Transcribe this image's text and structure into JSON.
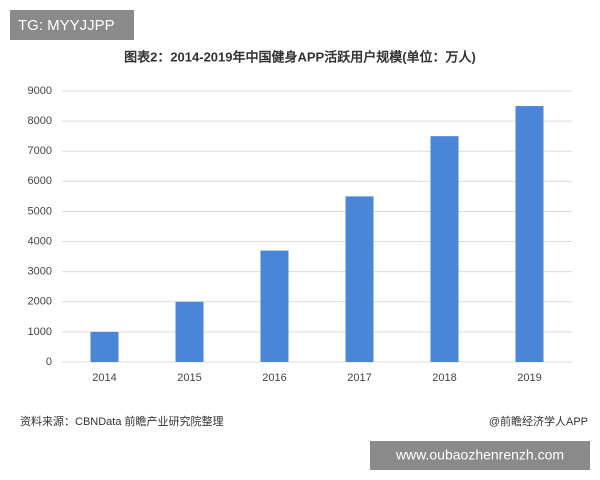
{
  "badge": "TG: MYYJJPP",
  "source": "资料来源：CBNData 前瞻产业研究院整理",
  "credit": "@前瞻经济学人APP",
  "footer_url": "www.oubaozhenrenzh.com",
  "chart_data": {
    "type": "bar",
    "title": "图表2：2014-2019年中国健身APP活跃用户规模(单位：万人)",
    "categories": [
      "2014",
      "2015",
      "2016",
      "2017",
      "2018",
      "2019"
    ],
    "values": [
      1000,
      2000,
      3700,
      5500,
      7500,
      8500
    ],
    "color": "#4a86d8",
    "ylim": [
      0,
      9000
    ],
    "yticks": [
      0,
      1000,
      2000,
      3000,
      4000,
      5000,
      6000,
      7000,
      8000,
      9000
    ],
    "grid": true
  }
}
